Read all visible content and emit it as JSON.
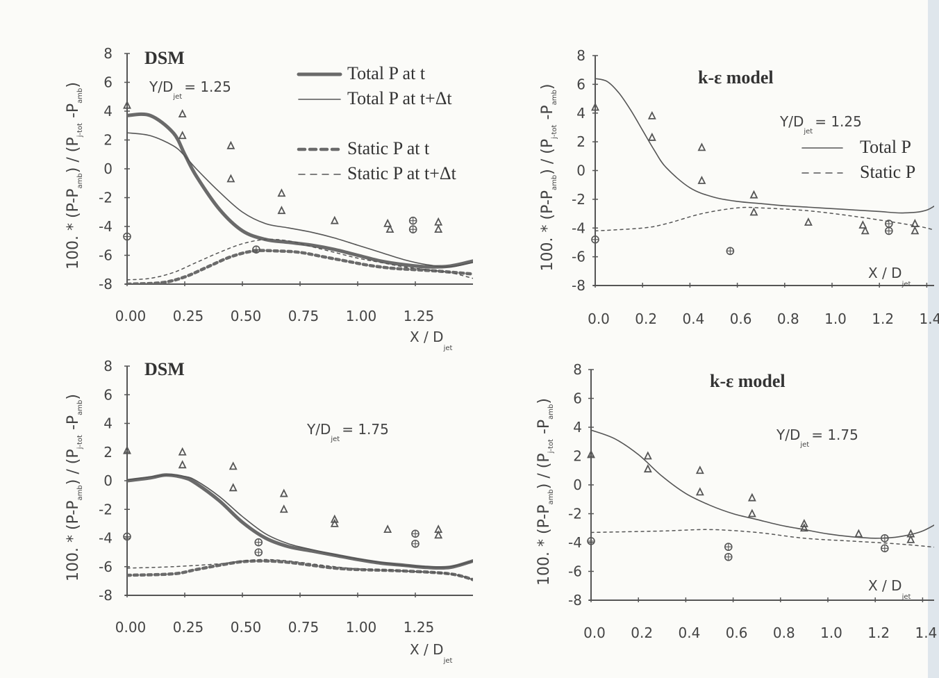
{
  "chart_data": [
    {
      "type": "line",
      "title": "DSM",
      "annotation": {
        "prefix": "Y/D",
        "sub": "jet",
        "value": "= 1.25"
      },
      "xlabel": {
        "main": "X / D",
        "sub": "jet"
      },
      "ylabel": [
        "100. * (P-P",
        "amb",
        ") / (P",
        "j-tot",
        " -P",
        "amb",
        ")"
      ],
      "xlim": [
        0,
        1.5
      ],
      "ylim": [
        -8,
        8
      ],
      "xticks": [
        0,
        0.25,
        0.5,
        0.75,
        1.0,
        1.25
      ],
      "xtick_labels": [
        "0.00",
        "0.25",
        "0.50",
        "0.75",
        "1.00",
        "1.25"
      ],
      "yticks": [
        8,
        6,
        4,
        2,
        0,
        -2,
        -4,
        -6,
        -8
      ],
      "ytick_labels": [
        "8",
        "6",
        "4",
        "2",
        "0",
        "-2",
        "-4",
        "-6",
        "-8"
      ],
      "legend_position": "top-right",
      "series": [
        {
          "name": "Total P at t",
          "style": "thick-solid",
          "x": [
            0,
            0.1,
            0.2,
            0.25,
            0.3,
            0.4,
            0.5,
            0.6,
            0.7,
            0.8,
            0.9,
            1.0,
            1.1,
            1.2,
            1.3,
            1.4,
            1.5
          ],
          "y": [
            3.7,
            3.7,
            2.5,
            1.0,
            -0.5,
            -2.8,
            -4.3,
            -4.9,
            -5.1,
            -5.3,
            -5.6,
            -6.0,
            -6.4,
            -6.65,
            -6.8,
            -6.75,
            -6.4
          ]
        },
        {
          "name": "Total P at t+Δt",
          "style": "thin-solid",
          "x": [
            0,
            0.1,
            0.2,
            0.25,
            0.3,
            0.4,
            0.5,
            0.6,
            0.7,
            0.8,
            0.9,
            1.0,
            1.1,
            1.2,
            1.3,
            1.4,
            1.5
          ],
          "y": [
            2.5,
            2.3,
            1.6,
            0.9,
            0.0,
            -1.6,
            -3.0,
            -3.8,
            -4.1,
            -4.4,
            -4.8,
            -5.3,
            -5.8,
            -6.3,
            -6.65,
            -6.8,
            -6.5
          ]
        },
        {
          "name": "Static P at t",
          "style": "thick-dashed",
          "x": [
            0,
            0.15,
            0.25,
            0.35,
            0.45,
            0.55,
            0.65,
            0.75,
            0.85,
            0.95,
            1.05,
            1.15,
            1.25,
            1.35,
            1.5
          ],
          "y": [
            -8,
            -7.9,
            -7.5,
            -6.8,
            -6.1,
            -5.7,
            -5.7,
            -5.8,
            -6.1,
            -6.4,
            -6.7,
            -6.9,
            -7.0,
            -7.1,
            -7.3
          ]
        },
        {
          "name": "Static P at t+Δt",
          "style": "thin-dashed",
          "x": [
            0,
            0.1,
            0.2,
            0.3,
            0.4,
            0.5,
            0.6,
            0.7,
            0.8,
            0.9,
            1.0,
            1.1,
            1.2,
            1.3,
            1.4,
            1.5
          ],
          "y": [
            -7.7,
            -7.6,
            -7.2,
            -6.5,
            -5.8,
            -5.2,
            -4.9,
            -5.0,
            -5.4,
            -5.8,
            -6.2,
            -6.5,
            -6.8,
            -7.0,
            -7.2,
            -7.6
          ]
        }
      ],
      "markers": {
        "triangle": [
          [
            0,
            4.4
          ],
          [
            0.24,
            3.8
          ],
          [
            0.24,
            2.3
          ],
          [
            0.45,
            1.6
          ],
          [
            0.45,
            -0.7
          ],
          [
            0.67,
            -1.7
          ],
          [
            0.67,
            -2.9
          ],
          [
            0.9,
            -3.6
          ],
          [
            1.13,
            -3.8
          ],
          [
            1.14,
            -4.2
          ],
          [
            1.35,
            -3.7
          ],
          [
            1.35,
            -4.2
          ]
        ],
        "circle_cross": [
          [
            0,
            -4.7
          ],
          [
            0.56,
            -5.6
          ],
          [
            1.24,
            -3.6
          ],
          [
            1.24,
            -4.2
          ]
        ]
      }
    },
    {
      "type": "line",
      "title": "k-ε model",
      "annotation": {
        "prefix": "Y/D",
        "sub": "jet",
        "value": "= 1.25"
      },
      "xlabel": {
        "main": "X / D",
        "sub": "jet"
      },
      "ylabel": [
        "100. * (P-P",
        "amb",
        ") / (P",
        "j-tot",
        " -P",
        "amb",
        ")"
      ],
      "xlim": [
        0,
        1.5
      ],
      "ylim": [
        -8,
        8
      ],
      "xticks": [
        0,
        0.2,
        0.4,
        0.6,
        0.8,
        1.0,
        1.2,
        1.4
      ],
      "xtick_labels": [
        "0.0",
        "0.2",
        "0.4",
        "0.6",
        "0.8",
        "1.0",
        "1.2",
        "1.4"
      ],
      "yticks": [
        8,
        6,
        4,
        2,
        0,
        -2,
        -4,
        -6,
        -8
      ],
      "ytick_labels": [
        "8",
        "6",
        "4",
        "2",
        "0",
        "-2",
        "-4",
        "-6",
        "-8"
      ],
      "legend_position": "right",
      "series": [
        {
          "name": "Total P",
          "style": "thin-solid",
          "x": [
            0,
            0.05,
            0.1,
            0.15,
            0.2,
            0.25,
            0.3,
            0.4,
            0.5,
            0.6,
            0.7,
            0.8,
            0.9,
            1.0,
            1.1,
            1.2,
            1.3,
            1.4,
            1.48
          ],
          "y": [
            6.4,
            6.2,
            5.4,
            4.2,
            2.8,
            1.4,
            0.2,
            -1.2,
            -1.85,
            -2.15,
            -2.3,
            -2.45,
            -2.55,
            -2.65,
            -2.75,
            -2.85,
            -2.95,
            -2.75,
            -1.9
          ]
        },
        {
          "name": "Static P",
          "style": "thin-dashed",
          "x": [
            0,
            0.2,
            0.3,
            0.45,
            0.6,
            0.7,
            0.9,
            1.1,
            1.3,
            1.4,
            1.5
          ],
          "y": [
            -4.2,
            -4.0,
            -3.7,
            -3.0,
            -2.6,
            -2.6,
            -2.8,
            -3.2,
            -3.7,
            -4.0,
            -4.5
          ]
        }
      ],
      "markers": {
        "triangle": [
          [
            0,
            4.4
          ],
          [
            0.24,
            3.8
          ],
          [
            0.24,
            2.3
          ],
          [
            0.45,
            1.6
          ],
          [
            0.45,
            -0.7
          ],
          [
            0.67,
            -1.7
          ],
          [
            0.67,
            -2.9
          ],
          [
            0.9,
            -3.6
          ],
          [
            1.13,
            -3.8
          ],
          [
            1.14,
            -4.2
          ],
          [
            1.35,
            -3.7
          ],
          [
            1.35,
            -4.2
          ]
        ],
        "circle_cross": [
          [
            0,
            -4.8
          ],
          [
            0.57,
            -5.6
          ],
          [
            1.24,
            -3.7
          ],
          [
            1.24,
            -4.2
          ]
        ]
      }
    },
    {
      "type": "line",
      "title": "DSM",
      "annotation": {
        "prefix": "Y/D",
        "sub": "jet",
        "value": "= 1.75"
      },
      "xlabel": {
        "main": "X / D",
        "sub": "jet"
      },
      "ylabel": [
        "100. * (P-P",
        "amb",
        ") / (P",
        "j-tot",
        " -P",
        "amb",
        ")"
      ],
      "xlim": [
        0,
        1.5
      ],
      "ylim": [
        -8,
        8
      ],
      "xticks": [
        0,
        0.25,
        0.5,
        0.75,
        1.0,
        1.25
      ],
      "xtick_labels": [
        "0.00",
        "0.25",
        "0.50",
        "0.75",
        "1.00",
        "1.25"
      ],
      "yticks": [
        8,
        6,
        4,
        2,
        0,
        -2,
        -4,
        -6,
        -8
      ],
      "ytick_labels": [
        "8",
        "6",
        "4",
        "2",
        "0",
        "-2",
        "-4",
        "-6",
        "-8"
      ],
      "series": [
        {
          "style": "thick-solid",
          "x": [
            0,
            0.1,
            0.17,
            0.25,
            0.3,
            0.4,
            0.5,
            0.6,
            0.7,
            0.8,
            0.9,
            1.0,
            1.1,
            1.2,
            1.3,
            1.4,
            1.5
          ],
          "y": [
            0.0,
            0.2,
            0.4,
            0.2,
            -0.2,
            -1.4,
            -2.9,
            -4.0,
            -4.6,
            -4.9,
            -5.2,
            -5.5,
            -5.75,
            -5.9,
            -6.05,
            -6.05,
            -5.6
          ]
        },
        {
          "style": "thin-solid",
          "x": [
            0,
            0.17,
            0.25,
            0.3,
            0.4,
            0.5,
            0.6,
            0.7,
            0.8,
            0.9,
            1.0,
            1.1,
            1.2,
            1.3,
            1.4,
            1.5
          ],
          "y": [
            0.05,
            0.4,
            0.3,
            0.0,
            -1.1,
            -2.5,
            -3.7,
            -4.4,
            -4.8,
            -5.15,
            -5.45,
            -5.7,
            -5.9,
            -6.0,
            -6.0,
            -5.6
          ]
        },
        {
          "style": "thick-dashed",
          "x": [
            0,
            0.2,
            0.3,
            0.4,
            0.5,
            0.6,
            0.7,
            0.8,
            0.9,
            1.0,
            1.2,
            1.4,
            1.5
          ],
          "y": [
            -6.6,
            -6.5,
            -6.2,
            -5.9,
            -5.65,
            -5.6,
            -5.7,
            -5.9,
            -6.1,
            -6.2,
            -6.3,
            -6.5,
            -6.9
          ]
        },
        {
          "style": "thin-dashed",
          "x": [
            0,
            0.2,
            0.4,
            0.5,
            0.6,
            0.7,
            0.8,
            0.9,
            1.0,
            1.2,
            1.4,
            1.5
          ],
          "y": [
            -6.1,
            -6.0,
            -5.8,
            -5.6,
            -5.5,
            -5.6,
            -5.8,
            -6.0,
            -6.15,
            -6.3,
            -6.5,
            -6.9
          ]
        }
      ],
      "markers": {
        "triangle": [
          [
            0,
            2.1
          ],
          [
            0.24,
            2.0
          ],
          [
            0.24,
            1.1
          ],
          [
            0.46,
            1.0
          ],
          [
            0.46,
            -0.5
          ],
          [
            0.68,
            -0.9
          ],
          [
            0.68,
            -2.0
          ],
          [
            0.9,
            -2.7
          ],
          [
            0.9,
            -3.0
          ],
          [
            1.13,
            -3.4
          ],
          [
            1.35,
            -3.4
          ],
          [
            1.35,
            -3.8
          ]
        ],
        "circle_cross": [
          [
            0,
            -3.9
          ],
          [
            0.57,
            -4.3
          ],
          [
            0.57,
            -5.0
          ],
          [
            1.25,
            -3.7
          ],
          [
            1.25,
            -4.4
          ]
        ]
      }
    },
    {
      "type": "line",
      "title": "k-ε model",
      "annotation": {
        "prefix": "Y/D",
        "sub": "jet",
        "value": "= 1.75"
      },
      "xlabel": {
        "main": "X / D",
        "sub": "jet"
      },
      "ylabel": [
        "100. * (P-P",
        "amb",
        ") / (P",
        "j-tot",
        " -P",
        "amb",
        ")"
      ],
      "xlim": [
        0,
        1.5
      ],
      "ylim": [
        -8,
        8
      ],
      "xticks": [
        0,
        0.2,
        0.4,
        0.6,
        0.8,
        1.0,
        1.2,
        1.4
      ],
      "xtick_labels": [
        "0.0",
        "0.2",
        "0.4",
        "0.6",
        "0.8",
        "1.0",
        "1.2",
        "1.4"
      ],
      "yticks": [
        8,
        6,
        4,
        2,
        0,
        -2,
        -4,
        -6,
        -8
      ],
      "ytick_labels": [
        "8",
        "6",
        "4",
        "2",
        "0",
        "-2",
        "-4",
        "-6",
        "-8"
      ],
      "series": [
        {
          "style": "thin-solid",
          "x": [
            0,
            0.1,
            0.2,
            0.3,
            0.4,
            0.5,
            0.6,
            0.7,
            0.8,
            0.9,
            1.0,
            1.1,
            1.2,
            1.3,
            1.4,
            1.5
          ],
          "y": [
            3.8,
            3.2,
            2.1,
            0.6,
            -0.6,
            -1.4,
            -2.0,
            -2.4,
            -2.8,
            -3.1,
            -3.4,
            -3.6,
            -3.7,
            -3.6,
            -3.2,
            -2.3
          ]
        },
        {
          "style": "thin-dashed",
          "x": [
            0,
            0.3,
            0.5,
            0.7,
            0.9,
            1.1,
            1.3,
            1.5
          ],
          "y": [
            -3.3,
            -3.2,
            -3.1,
            -3.3,
            -3.7,
            -3.9,
            -4.1,
            -4.4
          ]
        }
      ],
      "markers": {
        "triangle": [
          [
            0,
            2.1
          ],
          [
            0.24,
            2.0
          ],
          [
            0.24,
            1.1
          ],
          [
            0.46,
            1.0
          ],
          [
            0.46,
            -0.5
          ],
          [
            0.68,
            -0.9
          ],
          [
            0.68,
            -2.0
          ],
          [
            0.9,
            -2.7
          ],
          [
            0.9,
            -3.0
          ],
          [
            1.13,
            -3.4
          ],
          [
            1.35,
            -3.4
          ],
          [
            1.35,
            -3.8
          ]
        ],
        "circle_cross": [
          [
            0,
            -3.9
          ],
          [
            0.58,
            -4.3
          ],
          [
            0.58,
            -5.0
          ],
          [
            1.24,
            -3.7
          ],
          [
            1.24,
            -4.4
          ]
        ]
      }
    }
  ],
  "colors": {
    "ink": "#555555",
    "paper": "#fbfbf8",
    "edge_strip": "#dfe6ec"
  }
}
